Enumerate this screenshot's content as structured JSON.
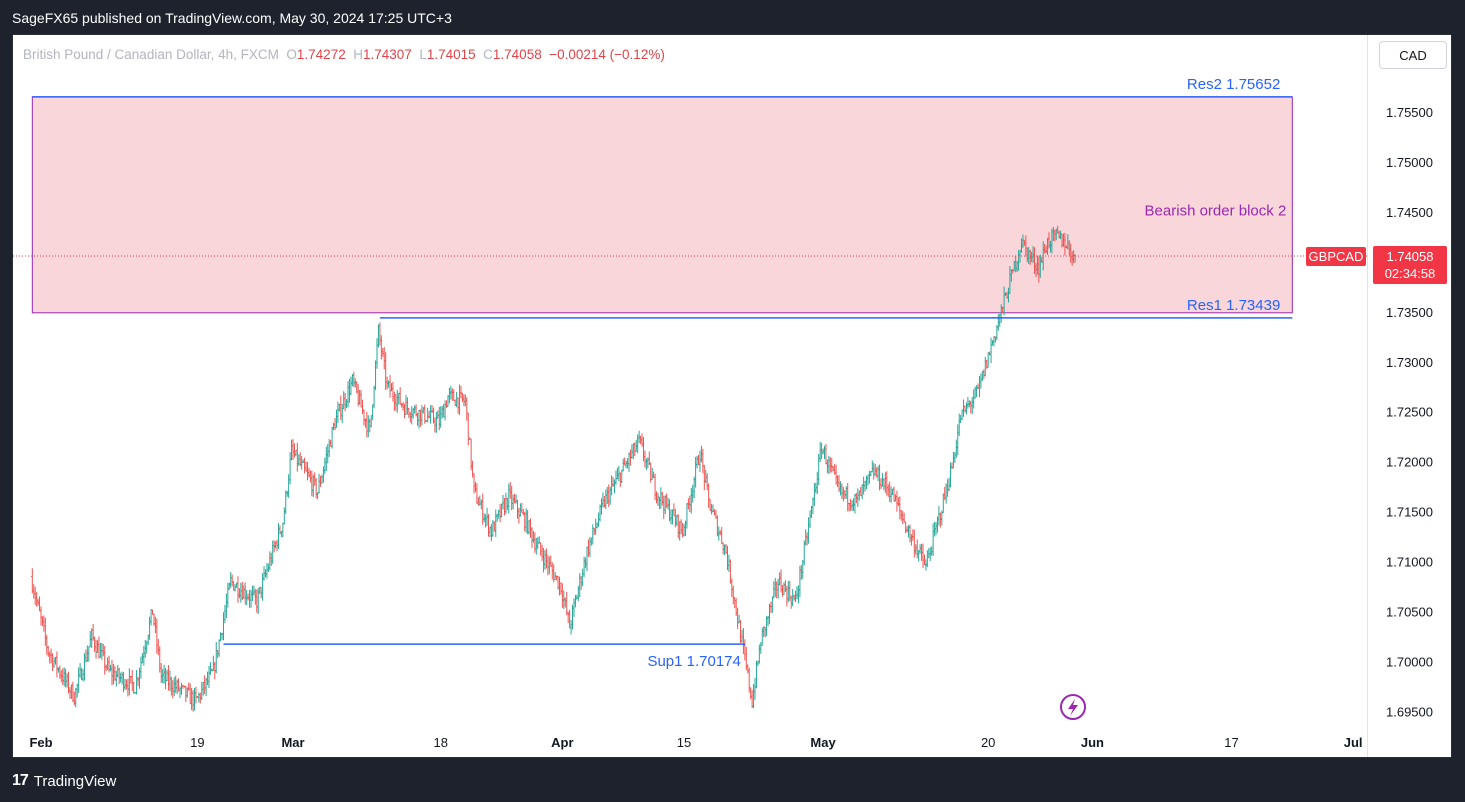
{
  "header": {
    "publisher": "SageFX65 published on TradingView.com, May 30, 2024 17:25 UTC+3"
  },
  "legend": {
    "symbol": "British Pound / Canadian Dollar, 4h, FXCM",
    "o_label": "O",
    "o": "1.74272",
    "h_label": "H",
    "h": "1.74307",
    "l_label": "L",
    "l": "1.74015",
    "c_label": "C",
    "c": "1.74058",
    "change": "−0.00214 (−0.12%)"
  },
  "currency_button": "CAD",
  "footer": {
    "brand": "TradingView",
    "logo_mark": "17"
  },
  "colors": {
    "up": "#26a69a",
    "down": "#ef5350",
    "level_line": "#2962ff",
    "zone_fill": "#f8d6da",
    "zone_border": "#9c27b0",
    "price_tag": "#f23645"
  },
  "chart_data": {
    "type": "candlestick",
    "symbol": "GBPCAD",
    "timeframe": "4h",
    "x_ticks": [
      "Feb",
      "19",
      "Mar",
      "18",
      "Apr",
      "15",
      "May",
      "20",
      "Jun",
      "17",
      "Jul"
    ],
    "x_tick_dates": [
      "2024-02-01",
      "2024-02-19",
      "2024-03-01",
      "2024-03-18",
      "2024-04-01",
      "2024-04-15",
      "2024-05-01",
      "2024-05-20",
      "2024-06-01",
      "2024-06-17",
      "2024-07-01"
    ],
    "y_ticks": [
      "1.75500",
      "1.75000",
      "1.74500",
      "1.74000",
      "1.73500",
      "1.73000",
      "1.72500",
      "1.72000",
      "1.71500",
      "1.71000",
      "1.70500",
      "1.70000",
      "1.69500"
    ],
    "ylim": [
      1.693,
      1.76
    ],
    "price_path": [
      [
        "2024-01-31",
        1.7085
      ],
      [
        "2024-02-02",
        1.701
      ],
      [
        "2024-02-05",
        1.6965
      ],
      [
        "2024-02-07",
        1.7025
      ],
      [
        "2024-02-09",
        1.699
      ],
      [
        "2024-02-12",
        1.6975
      ],
      [
        "2024-02-14",
        1.705
      ],
      [
        "2024-02-15",
        1.6985
      ],
      [
        "2024-02-19",
        1.696
      ],
      [
        "2024-02-21",
        1.699
      ],
      [
        "2024-02-23",
        1.708
      ],
      [
        "2024-02-26",
        1.706
      ],
      [
        "2024-02-29",
        1.714
      ],
      [
        "2024-03-01",
        1.721
      ],
      [
        "2024-03-04",
        1.717
      ],
      [
        "2024-03-06",
        1.724
      ],
      [
        "2024-03-08",
        1.728
      ],
      [
        "2024-03-10",
        1.723
      ],
      [
        "2024-03-11",
        1.733
      ],
      [
        "2024-03-12",
        1.7275
      ],
      [
        "2024-03-14",
        1.7255
      ],
      [
        "2024-03-18",
        1.724
      ],
      [
        "2024-03-19",
        1.7265
      ],
      [
        "2024-03-21",
        1.726
      ],
      [
        "2024-03-22",
        1.717
      ],
      [
        "2024-03-24",
        1.713
      ],
      [
        "2024-03-26",
        1.7165
      ],
      [
        "2024-03-28",
        1.714
      ],
      [
        "2024-03-29",
        1.712
      ],
      [
        "2024-04-01",
        1.7075
      ],
      [
        "2024-04-02",
        1.7035
      ],
      [
        "2024-04-04",
        1.711
      ],
      [
        "2024-04-06",
        1.716
      ],
      [
        "2024-04-08",
        1.719
      ],
      [
        "2024-04-10",
        1.722
      ],
      [
        "2024-04-12",
        1.717
      ],
      [
        "2024-04-15",
        1.713
      ],
      [
        "2024-04-17",
        1.721
      ],
      [
        "2024-04-18",
        1.716
      ],
      [
        "2024-04-20",
        1.711
      ],
      [
        "2024-04-22",
        1.701
      ],
      [
        "2024-04-23",
        1.696
      ],
      [
        "2024-04-24",
        1.702
      ],
      [
        "2024-04-26",
        1.708
      ],
      [
        "2024-04-28",
        1.706
      ],
      [
        "2024-04-30",
        1.716
      ],
      [
        "2024-05-01",
        1.7215
      ],
      [
        "2024-05-03",
        1.717
      ],
      [
        "2024-05-05",
        1.716
      ],
      [
        "2024-05-07",
        1.719
      ],
      [
        "2024-05-09",
        1.717
      ],
      [
        "2024-05-11",
        1.713
      ],
      [
        "2024-05-13",
        1.7095
      ],
      [
        "2024-05-15",
        1.716
      ],
      [
        "2024-05-16",
        1.7195
      ],
      [
        "2024-05-17",
        1.7245
      ],
      [
        "2024-05-19",
        1.727
      ],
      [
        "2024-05-20",
        1.73
      ],
      [
        "2024-05-21",
        1.733
      ],
      [
        "2024-05-22",
        1.736
      ],
      [
        "2024-05-23",
        1.739
      ],
      [
        "2024-05-24",
        1.742
      ],
      [
        "2024-05-25",
        1.7405
      ],
      [
        "2024-05-26",
        1.7395
      ],
      [
        "2024-05-27",
        1.742
      ],
      [
        "2024-05-28",
        1.7425
      ],
      [
        "2024-05-29",
        1.742
      ],
      [
        "2024-05-30",
        1.74058
      ]
    ],
    "current_price": {
      "symbol_label": "GBPCAD",
      "price": "1.74058",
      "countdown": "02:34:58",
      "value": 1.74058
    },
    "zone": {
      "label": "Bearish order block 2",
      "top": 1.75652,
      "bottom": 1.7349,
      "start": "2024-01-31",
      "end": "2024-06-24"
    },
    "levels": [
      {
        "label": "Res2 1.75652",
        "value": 1.75652,
        "start": "2024-01-31",
        "end": "2024-06-24"
      },
      {
        "label": "Res1 1.73439",
        "value": 1.73439,
        "start": "2024-03-11",
        "end": "2024-06-24"
      },
      {
        "label": "Sup1 1.70174",
        "value": 1.70174,
        "start": "2024-02-22",
        "end": "2024-04-22"
      }
    ]
  }
}
